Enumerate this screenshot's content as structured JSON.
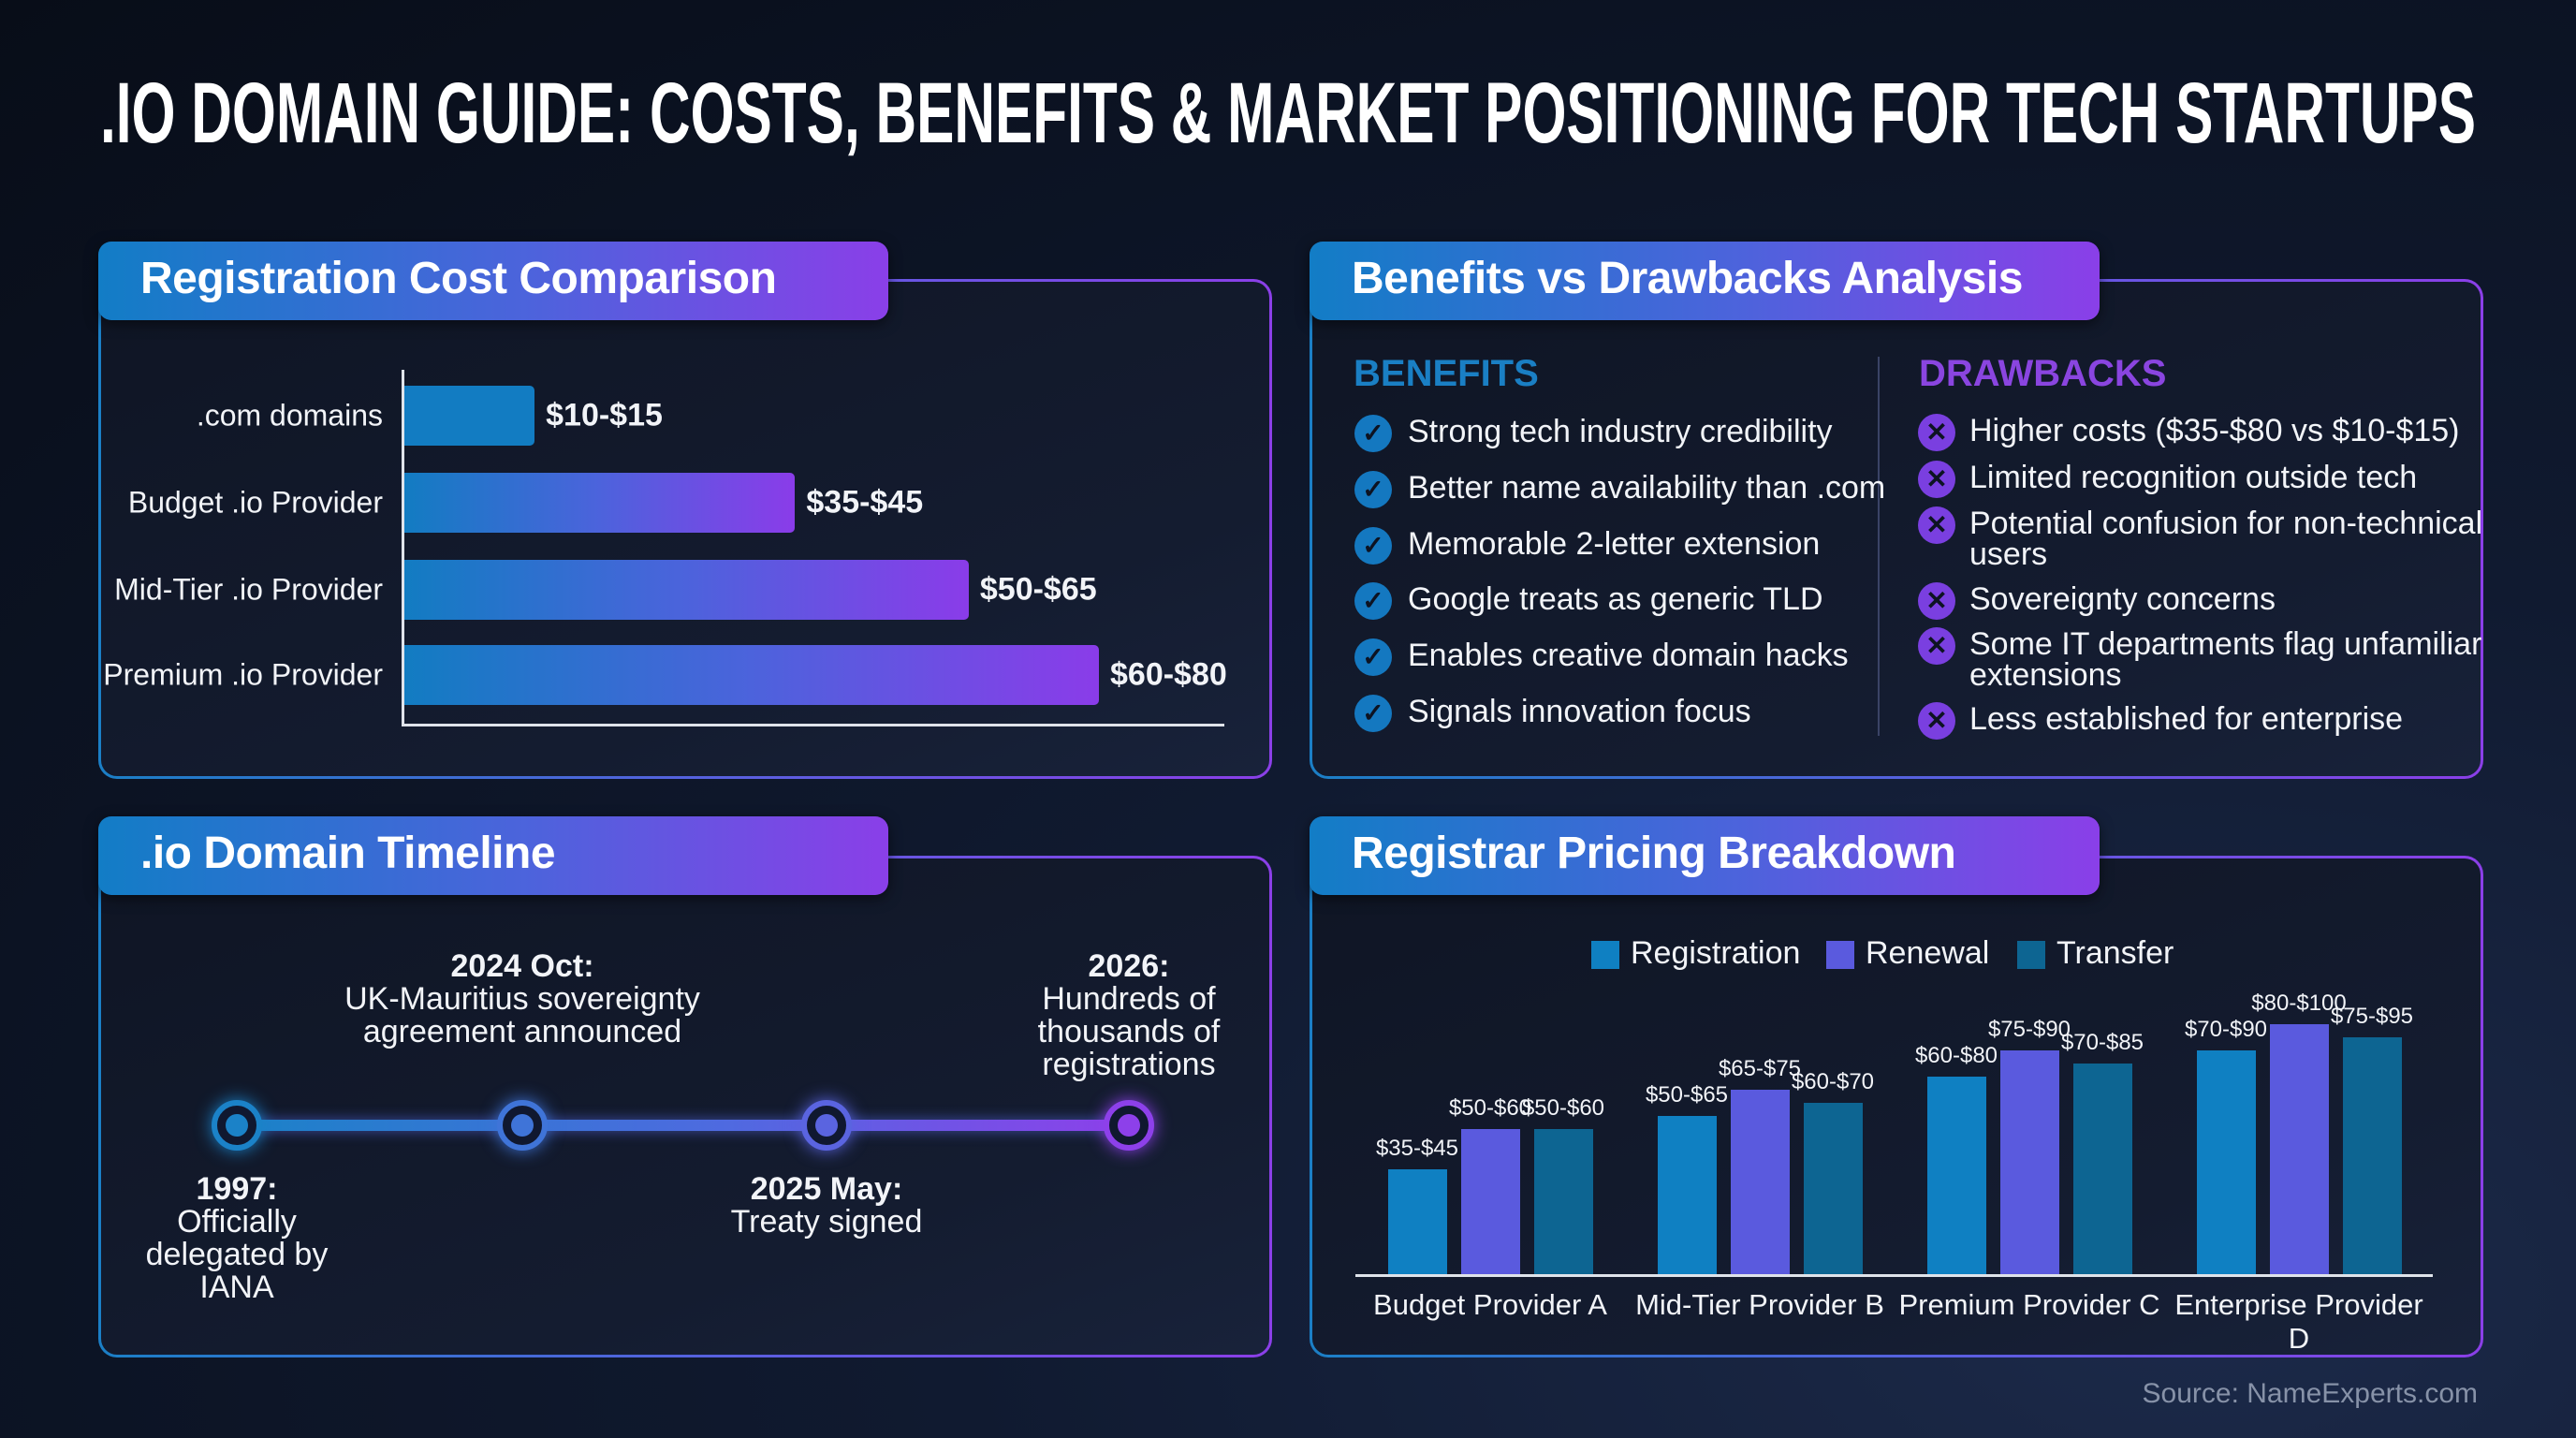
{
  "title": ".IO DOMAIN GUIDE: COSTS, BENEFITS & MARKET POSITIONING FOR TECH STARTUPS",
  "colors": {
    "blue": "#137ec5",
    "purple": "#8a3fe8",
    "registration": "#0f80c2",
    "renewal": "#5a5ade",
    "transfer": "#0d6592",
    "benefits_heading": "#1a7fc4",
    "drawbacks_heading": "#8a45e0"
  },
  "panels": {
    "cost": {
      "title": "Registration Cost Comparison"
    },
    "benefits": {
      "title": "Benefits vs Drawbacks Analysis",
      "benefits_heading": "BENEFITS",
      "drawbacks_heading": "DRAWBACKS",
      "benefits": [
        "Strong tech industry credibility",
        "Better name availability than .com",
        "Memorable 2-letter extension",
        "Google treats as generic TLD",
        "Enables creative domain hacks",
        "Signals innovation focus"
      ],
      "drawbacks": [
        "Higher costs ($35-$80 vs $10-$15)",
        "Limited recognition outside tech",
        "Potential confusion for non-technical users",
        "Sovereignty concerns",
        "Some IT departments flag unfamiliar extensions",
        "Less established for enterprise"
      ],
      "benefit_icon": "check-circle-icon",
      "drawback_icon": "x-circle-icon"
    },
    "timeline": {
      "title": ".io Domain Timeline",
      "events": [
        {
          "date": "1997:",
          "text": "Officially delegated by IANA"
        },
        {
          "date": "2024 Oct:",
          "text": "UK-Mauritius sovereignty agreement announced"
        },
        {
          "date": "2025 May:",
          "text": "Treaty signed"
        },
        {
          "date": "2026:",
          "text": "Hundreds of thousands of registrations"
        }
      ]
    },
    "registrar": {
      "title": "Registrar Pricing Breakdown"
    }
  },
  "source": "Source: NameExperts.com",
  "chart_data": [
    {
      "type": "bar",
      "orientation": "horizontal",
      "categories": [
        ".com domains",
        "Budget .io Provider",
        "Mid-Tier .io Provider",
        "Premium .io Provider"
      ],
      "labels": [
        "$10-$15",
        "$35-$45",
        "$50-$65",
        "$60-$80"
      ],
      "values_low": [
        10,
        35,
        50,
        60
      ],
      "values_high": [
        15,
        45,
        65,
        80
      ],
      "xlim": [
        0,
        80
      ],
      "grid": false
    },
    {
      "type": "bar",
      "orientation": "vertical",
      "categories": [
        "Budget Provider A",
        "Mid-Tier Provider B",
        "Premium Provider C",
        "Enterprise Provider D"
      ],
      "legend_position": "top",
      "grid": false,
      "series": [
        {
          "name": "Registration",
          "labels": [
            "$35-$45",
            "$50-$65",
            "$60-$80",
            "$70-$90"
          ],
          "values_low": [
            35,
            50,
            60,
            70
          ],
          "values_high": [
            45,
            65,
            80,
            90
          ]
        },
        {
          "name": "Renewal",
          "labels": [
            "$50-$60",
            "$65-$75",
            "$75-$90",
            "$80-$100"
          ],
          "values_low": [
            50,
            65,
            75,
            80
          ],
          "values_high": [
            60,
            75,
            90,
            100
          ]
        },
        {
          "name": "Transfer",
          "labels": [
            "$50-$60",
            "$60-$70",
            "$70-$85",
            "$75-$95"
          ],
          "values_low": [
            50,
            60,
            70,
            75
          ],
          "values_high": [
            60,
            70,
            85,
            95
          ]
        }
      ]
    }
  ]
}
